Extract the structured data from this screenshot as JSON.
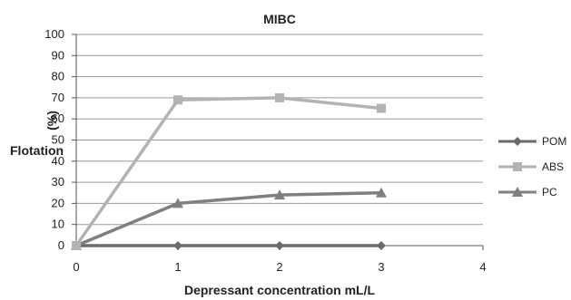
{
  "chart_data": {
    "type": "line",
    "title": "MIBC",
    "xlabel": "Depressant concentration mL/L",
    "ylabel_top": "(%)",
    "ylabel_main": "Flotation",
    "xlim": [
      0,
      4
    ],
    "ylim": [
      0,
      100
    ],
    "xticks": [
      0,
      1,
      2,
      3,
      4
    ],
    "yticks": [
      0,
      10,
      20,
      30,
      40,
      50,
      60,
      70,
      80,
      90,
      100
    ],
    "grid": "horizontal",
    "legend_position": "right",
    "series": [
      {
        "name": "POM",
        "marker": "diamond",
        "color": "#6b6b6b",
        "x": [
          0,
          1,
          2,
          3
        ],
        "y": [
          0,
          0,
          0,
          0
        ]
      },
      {
        "name": "ABS",
        "marker": "square",
        "color": "#b3b3b3",
        "x": [
          0,
          1,
          2,
          3
        ],
        "y": [
          0,
          69,
          70,
          65
        ]
      },
      {
        "name": "PC",
        "marker": "triangle",
        "color": "#7f7f7f",
        "x": [
          0,
          1,
          2,
          3
        ],
        "y": [
          0,
          20,
          24,
          25
        ]
      }
    ]
  }
}
